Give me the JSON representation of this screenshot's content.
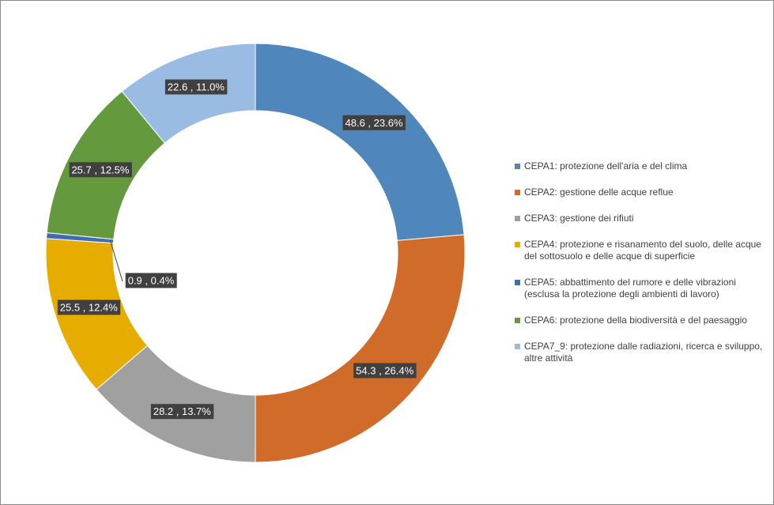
{
  "chart_data": {
    "type": "donut",
    "categories": [
      "CEPA1: protezione dell'aria e del clima",
      "CEPA2: gestione delle acque reflue",
      "CEPA3: gestione dei rifiuti",
      "CEPA4: protezione e risanamento del suolo, delle acque del sottosuolo e delle acque di superficie",
      "CEPA5: abbattimento del rumore e delle vibrazioni (esclusa la protezione degli ambienti di lavoro)",
      "CEPA6: protezione della biodiversità e del paesaggio",
      "CEPA7_9: protezione dalle radiazioni, ricerca e sviluppo, altre attività"
    ],
    "values": [
      48.6,
      54.3,
      28.2,
      25.5,
      0.9,
      25.7,
      22.6
    ],
    "value_labels": [
      "48.6 , 23.6%",
      "54.3 , 26.4%",
      "28.2 , 13.7%",
      "25.5 , 12.4%",
      "0.9 , 0.4%",
      "25.7 , 12.5%",
      "22.6 , 11.0%"
    ],
    "colors": [
      "#4f87bd",
      "#d06b29",
      "#a0a0a0",
      "#e6ac00",
      "#3e6db4",
      "#64993d",
      "#9bbce2"
    ],
    "legend": "right"
  }
}
